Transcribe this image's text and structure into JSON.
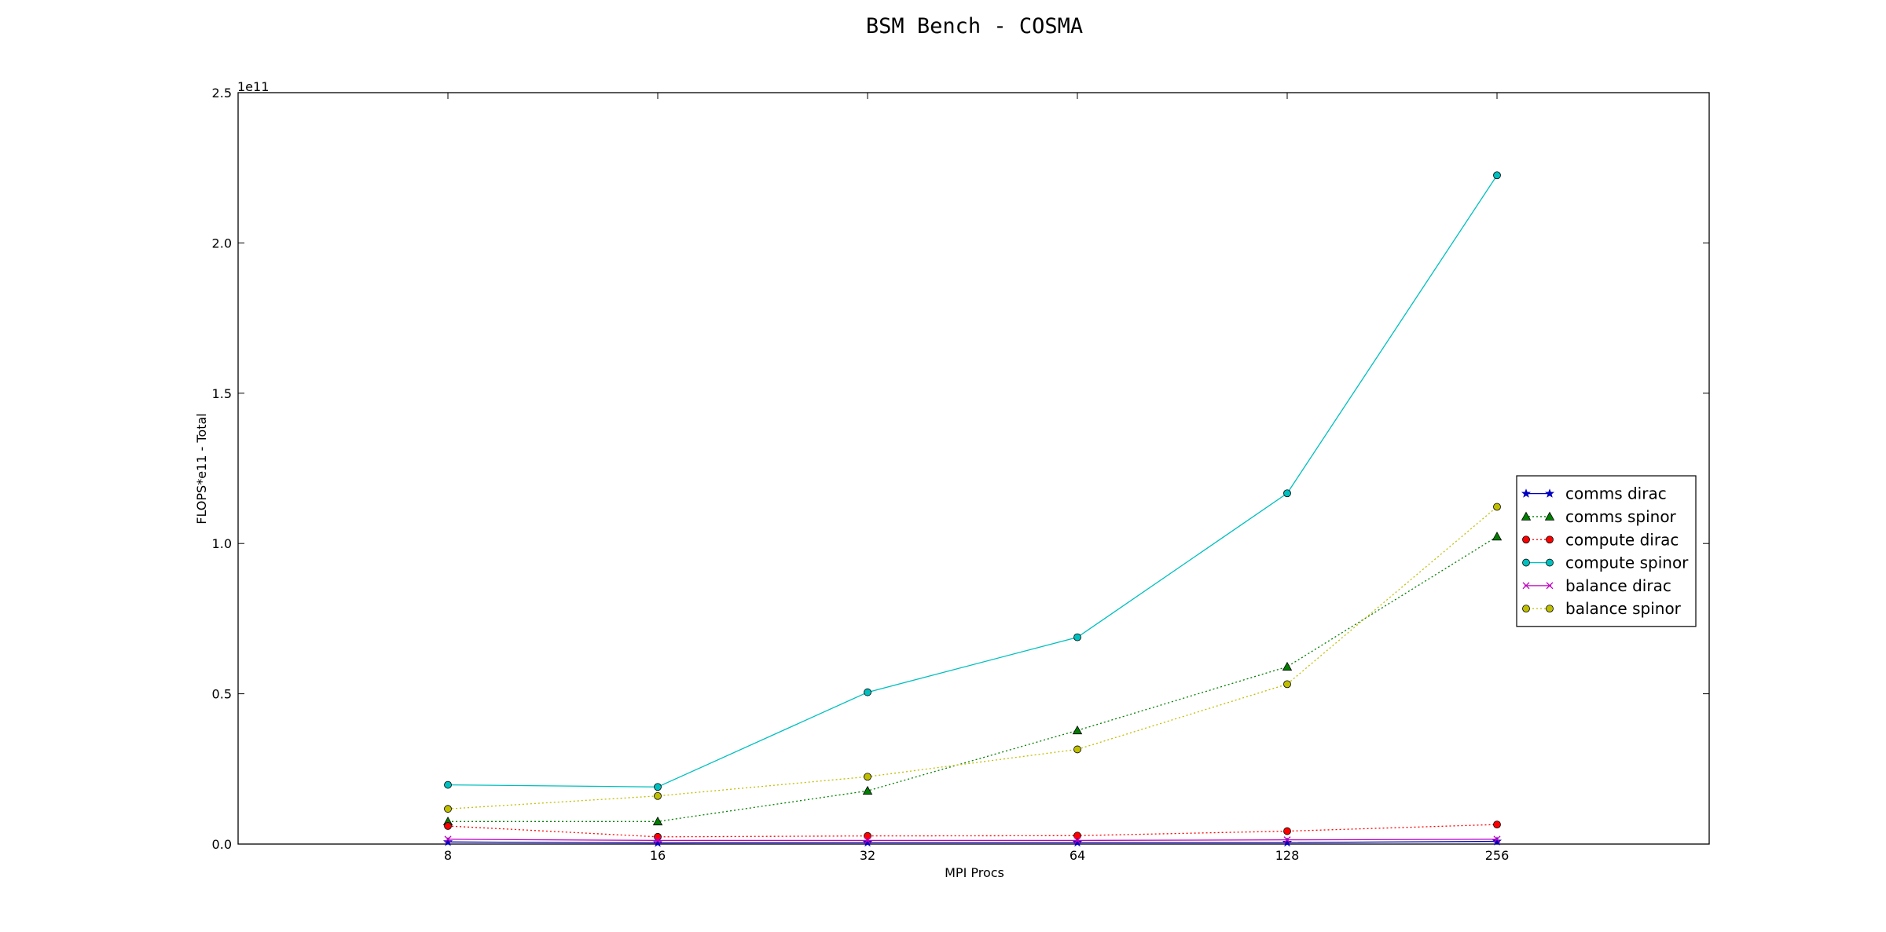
{
  "chart_data": {
    "type": "line",
    "title": "BSM Bench - COSMA",
    "xlabel": "MPI Procs",
    "ylabel": "FLOPS*e11 - Total",
    "y_offset_label": "1e11",
    "categories": [
      "8",
      "16",
      "32",
      "64",
      "128",
      "256"
    ],
    "x_scale": "log2",
    "ylim": [
      0,
      2.5
    ],
    "yticks": [
      "0.0",
      "0.5",
      "1.0",
      "1.5",
      "2.0",
      "2.5"
    ],
    "grid": false,
    "legend_position": "right",
    "series": [
      {
        "name": "comms dirac",
        "values": [
          0.007,
          0.004,
          0.005,
          0.005,
          0.005,
          0.009
        ],
        "color": "#0000bf",
        "linestyle": "solid",
        "marker": "star"
      },
      {
        "name": "comms spinor",
        "values": [
          0.075,
          0.075,
          0.177,
          0.378,
          0.59,
          1.023
        ],
        "color": "#007f00",
        "linestyle": "dotted",
        "marker": "triangle"
      },
      {
        "name": "compute dirac",
        "values": [
          0.06,
          0.024,
          0.027,
          0.028,
          0.043,
          0.065
        ],
        "color": "#ff0000",
        "linestyle": "dotted",
        "marker": "circle"
      },
      {
        "name": "compute spinor",
        "values": [
          0.197,
          0.19,
          0.505,
          0.688,
          1.167,
          2.225
        ],
        "color": "#00bfbf",
        "linestyle": "solid",
        "marker": "circle"
      },
      {
        "name": "balance dirac",
        "values": [
          0.016,
          0.012,
          0.012,
          0.012,
          0.014,
          0.016
        ],
        "color": "#bf00bf",
        "linestyle": "solid",
        "marker": "x"
      },
      {
        "name": "balance spinor",
        "values": [
          0.117,
          0.16,
          0.224,
          0.315,
          0.532,
          1.122
        ],
        "color": "#bfbf00",
        "linestyle": "dotted",
        "marker": "circle"
      }
    ]
  }
}
